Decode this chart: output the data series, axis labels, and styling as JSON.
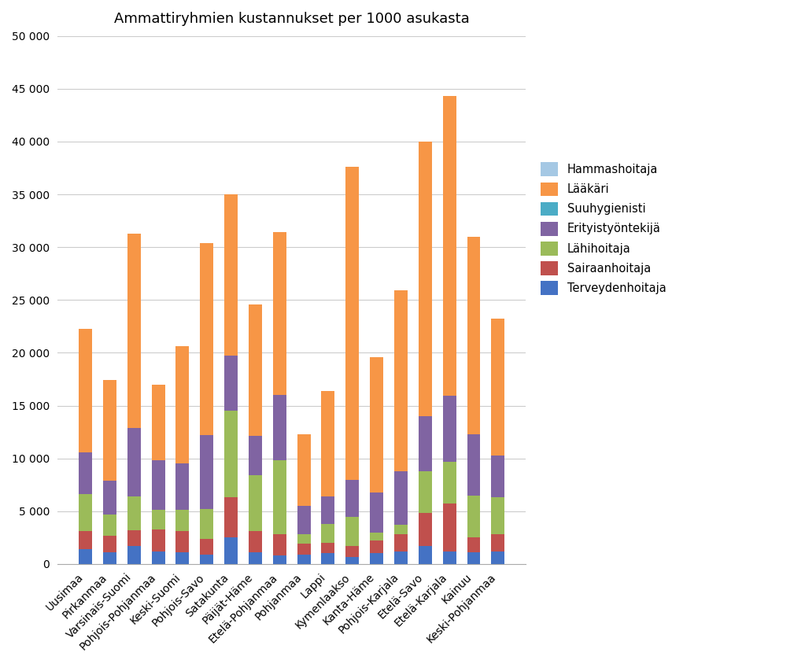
{
  "title": "Ammattiryhmien kustannukset per 1000 asukasta",
  "categories": [
    "Uusimaa",
    "Pirkanmaa",
    "Varsinais-Suomi",
    "Pohjois-Pohjanmaa",
    "Keski-Suomi",
    "Pohjois-Savo",
    "Satakunta",
    "Päijät-Häme",
    "Etelä-Pohjanmaa",
    "Pohjanmaa",
    "Lappi",
    "Kymenlaakso",
    "Kanta-Häme",
    "Pohjois-Karjala",
    "Etelä-Savo",
    "Etelä-Karjala",
    "Kainuu",
    "Keski-Pohjanmaa"
  ],
  "series": {
    "Terveydenhoitaja": [
      1400,
      1100,
      1700,
      1200,
      1100,
      900,
      2500,
      1100,
      800,
      900,
      1000,
      700,
      1000,
      1200,
      1700,
      1200,
      1100,
      1200
    ],
    "Sairaanhoitaja": [
      1700,
      1600,
      1500,
      2100,
      2000,
      1500,
      3800,
      2000,
      2000,
      1000,
      1000,
      1000,
      1200,
      1600,
      3100,
      4500,
      1400,
      1600
    ],
    "Lähihoitaja": [
      3500,
      2000,
      3200,
      1800,
      2000,
      2800,
      8200,
      5300,
      7000,
      900,
      1800,
      2800,
      800,
      900,
      4000,
      4000,
      4000,
      3500
    ],
    "Erityistyöntekijä": [
      4000,
      3200,
      6500,
      4700,
      4400,
      7000,
      5200,
      3700,
      6200,
      2700,
      2600,
      3500,
      3800,
      5100,
      5200,
      6200,
      5800,
      4000
    ],
    "Suuhygienisti": [
      0,
      0,
      0,
      0,
      0,
      0,
      0,
      0,
      0,
      0,
      0,
      0,
      0,
      0,
      0,
      0,
      0,
      0
    ],
    "Lääkäri": [
      11700,
      9500,
      18400,
      7200,
      11100,
      18200,
      15300,
      12500,
      15400,
      6800,
      10000,
      29600,
      12800,
      17100,
      26000,
      28400,
      18700,
      12900
    ],
    "Hammashoitaja": [
      0,
      0,
      0,
      0,
      0,
      0,
      0,
      0,
      0,
      0,
      0,
      0,
      0,
      0,
      0,
      0,
      0,
      0
    ]
  },
  "colors": {
    "Terveydenhoitaja": "#4472C4",
    "Sairaanhoitaja": "#C0504D",
    "Lähihoitaja": "#9BBB59",
    "Erityistyöntekijä": "#8064A2",
    "Suuhygienisti": "#4BACC6",
    "Lääkäri": "#F79646",
    "Hammashoitaja": "#A5C8E4"
  },
  "ylim": [
    0,
    50000
  ],
  "yticks": [
    0,
    5000,
    10000,
    15000,
    20000,
    25000,
    30000,
    35000,
    40000,
    45000,
    50000
  ],
  "ytick_labels": [
    "0",
    "5 000",
    "10 000",
    "15 000",
    "20 000",
    "25 000",
    "30 000",
    "35 000",
    "40 000",
    "45 000",
    "50 000"
  ]
}
